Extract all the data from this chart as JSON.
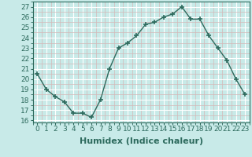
{
  "x": [
    0,
    1,
    2,
    3,
    4,
    5,
    6,
    7,
    8,
    9,
    10,
    11,
    12,
    13,
    14,
    15,
    16,
    17,
    18,
    19,
    20,
    21,
    22,
    23
  ],
  "y": [
    20.5,
    19.0,
    18.3,
    17.8,
    16.7,
    16.7,
    16.3,
    18.0,
    21.0,
    23.0,
    23.5,
    24.2,
    25.3,
    25.5,
    26.0,
    26.3,
    27.0,
    25.8,
    25.8,
    24.2,
    23.0,
    21.8,
    20.0,
    18.5
  ],
  "title": "",
  "xlabel": "Humidex (Indice chaleur)",
  "ylabel": "",
  "ylim": [
    15.8,
    27.5
  ],
  "xlim": [
    -0.5,
    23.5
  ],
  "yticks": [
    16,
    17,
    18,
    19,
    20,
    21,
    22,
    23,
    24,
    25,
    26,
    27
  ],
  "xticks": [
    0,
    1,
    2,
    3,
    4,
    5,
    6,
    7,
    8,
    9,
    10,
    11,
    12,
    13,
    14,
    15,
    16,
    17,
    18,
    19,
    20,
    21,
    22,
    23
  ],
  "xtick_labels": [
    "0",
    "1",
    "2",
    "3",
    "4",
    "5",
    "6",
    "7",
    "8",
    "9",
    "10",
    "11",
    "12",
    "13",
    "14",
    "15",
    "16",
    "17",
    "18",
    "19",
    "20",
    "21",
    "22",
    "23"
  ],
  "line_color": "#2e6b5e",
  "marker": "+",
  "marker_size": 4,
  "bg_color": "#c8eae8",
  "grid_major_color": "#ffffff",
  "grid_minor_color": "#d4b8b8",
  "tick_label_fontsize": 6.5,
  "xlabel_fontsize": 8,
  "line_width": 1.0
}
